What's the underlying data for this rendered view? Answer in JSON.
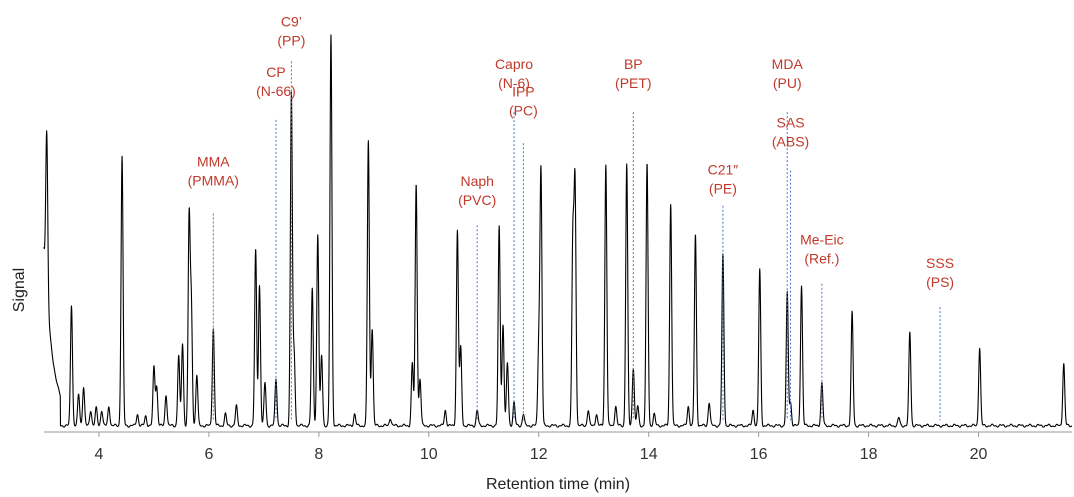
{
  "chart_data": {
    "type": "line",
    "xlabel": "Retention time (min)",
    "ylabel": "Signal",
    "xlim": [
      3.0,
      21.7
    ],
    "ylim": [
      0,
      100
    ],
    "x_ticks": [
      4,
      6,
      8,
      10,
      12,
      14,
      16,
      18,
      20
    ],
    "x_tick_labels": [
      "4",
      "6",
      "8",
      "10",
      "12",
      "14",
      "16",
      "18",
      "20"
    ],
    "grid": false,
    "series": [
      {
        "line_color": "#000000",
        "peaks": [
          {
            "x": 3.05,
            "y": 42
          },
          {
            "x": 3.5,
            "y": 31
          },
          {
            "x": 3.63,
            "y": 8
          },
          {
            "x": 3.72,
            "y": 10
          },
          {
            "x": 3.85,
            "y": 4
          },
          {
            "x": 3.95,
            "y": 4.5
          },
          {
            "x": 4.05,
            "y": 4
          },
          {
            "x": 4.18,
            "y": 5
          },
          {
            "x": 4.42,
            "y": 69
          },
          {
            "x": 4.7,
            "y": 3
          },
          {
            "x": 4.85,
            "y": 2.5
          },
          {
            "x": 5.0,
            "y": 15
          },
          {
            "x": 5.05,
            "y": 10
          },
          {
            "x": 5.22,
            "y": 8
          },
          {
            "x": 5.45,
            "y": 18
          },
          {
            "x": 5.52,
            "y": 21
          },
          {
            "x": 5.64,
            "y": 53
          },
          {
            "x": 5.68,
            "y": 30
          },
          {
            "x": 5.78,
            "y": 13
          },
          {
            "x": 6.08,
            "y": 25
          },
          {
            "x": 6.3,
            "y": 3
          },
          {
            "x": 6.5,
            "y": 5
          },
          {
            "x": 6.85,
            "y": 45
          },
          {
            "x": 6.92,
            "y": 36
          },
          {
            "x": 7.02,
            "y": 11
          },
          {
            "x": 7.22,
            "y": 12
          },
          {
            "x": 7.5,
            "y": 85
          },
          {
            "x": 7.55,
            "y": 18
          },
          {
            "x": 7.88,
            "y": 35
          },
          {
            "x": 7.98,
            "y": 49
          },
          {
            "x": 8.05,
            "y": 18
          },
          {
            "x": 8.22,
            "y": 100
          },
          {
            "x": 8.65,
            "y": 3
          },
          {
            "x": 8.9,
            "y": 73
          },
          {
            "x": 8.97,
            "y": 25
          },
          {
            "x": 9.3,
            "y": 2
          },
          {
            "x": 9.7,
            "y": 16
          },
          {
            "x": 9.77,
            "y": 62
          },
          {
            "x": 9.84,
            "y": 12
          },
          {
            "x": 10.3,
            "y": 4
          },
          {
            "x": 10.52,
            "y": 50
          },
          {
            "x": 10.58,
            "y": 20
          },
          {
            "x": 10.88,
            "y": 4
          },
          {
            "x": 11.28,
            "y": 51
          },
          {
            "x": 11.35,
            "y": 26
          },
          {
            "x": 11.43,
            "y": 16
          },
          {
            "x": 11.55,
            "y": 6
          },
          {
            "x": 11.72,
            "y": 3
          },
          {
            "x": 12.0,
            "y": 20
          },
          {
            "x": 12.04,
            "y": 65
          },
          {
            "x": 12.62,
            "y": 47
          },
          {
            "x": 12.66,
            "y": 61
          },
          {
            "x": 12.9,
            "y": 4
          },
          {
            "x": 13.05,
            "y": 3
          },
          {
            "x": 13.22,
            "y": 67
          },
          {
            "x": 13.4,
            "y": 5
          },
          {
            "x": 13.6,
            "y": 67
          },
          {
            "x": 13.72,
            "y": 15
          },
          {
            "x": 13.8,
            "y": 5
          },
          {
            "x": 13.97,
            "y": 67
          },
          {
            "x": 14.1,
            "y": 3
          },
          {
            "x": 14.4,
            "y": 57
          },
          {
            "x": 14.72,
            "y": 5
          },
          {
            "x": 14.85,
            "y": 49
          },
          {
            "x": 15.1,
            "y": 6
          },
          {
            "x": 15.35,
            "y": 44
          },
          {
            "x": 15.9,
            "y": 4
          },
          {
            "x": 16.02,
            "y": 40
          },
          {
            "x": 16.52,
            "y": 34
          },
          {
            "x": 16.58,
            "y": 6
          },
          {
            "x": 16.78,
            "y": 36
          },
          {
            "x": 17.15,
            "y": 11
          },
          {
            "x": 17.7,
            "y": 29
          },
          {
            "x": 18.55,
            "y": 2
          },
          {
            "x": 18.75,
            "y": 24
          },
          {
            "x": 20.02,
            "y": 20
          },
          {
            "x": 21.55,
            "y": 16
          }
        ]
      }
    ],
    "annotations": [
      {
        "line1": "MMA",
        "line2": "(PMMA)",
        "x": 6.08,
        "label_y": 67,
        "line_top_y": 55
      },
      {
        "line1": "CP",
        "line2": "(N-66)",
        "x": 7.22,
        "label_y": 90,
        "line_top_y": 79
      },
      {
        "line1": "C9’",
        "line2": "(PP)",
        "x": 7.5,
        "label_y": 103,
        "line_top_y": 94
      },
      {
        "line1": "Naph",
        "line2": "(PVC)",
        "x": 10.88,
        "label_y": 62,
        "line_top_y": 52
      },
      {
        "line1": "Capro",
        "line2": "(N-6)",
        "x": 11.55,
        "label_y": 92,
        "line_top_y": 81
      },
      {
        "line1": "IPP",
        "line2": "(PC)",
        "x": 11.72,
        "label_y": 85,
        "line_top_y": 73
      },
      {
        "line1": "BP",
        "line2": "(PET)",
        "x": 13.72,
        "label_y": 92,
        "line_top_y": 81
      },
      {
        "line1": "C21″",
        "line2": "(PE)",
        "x": 15.35,
        "label_y": 65,
        "line_top_y": 57
      },
      {
        "line1": "MDA",
        "line2": "(PU)",
        "x": 16.52,
        "label_y": 92,
        "line_top_y": 81
      },
      {
        "line1": "SAS",
        "line2": "(ABS)",
        "x": 16.58,
        "label_y": 77,
        "line_top_y": 66
      },
      {
        "line1": "Me-Eic",
        "line2": "(Ref.)",
        "x": 17.15,
        "label_y": 47,
        "line_top_y": 37
      },
      {
        "line1": "SSS",
        "line2": "(PS)",
        "x": 19.3,
        "label_y": 41,
        "line_top_y": 31
      }
    ]
  }
}
